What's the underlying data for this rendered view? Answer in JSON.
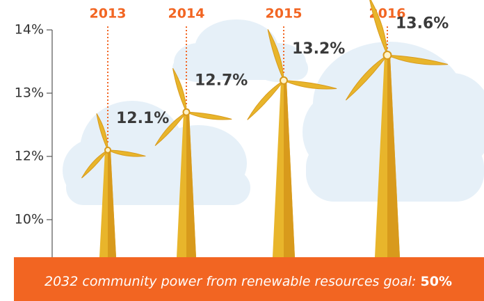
{
  "chart_data": {
    "type": "turbine",
    "categories": [
      "2013",
      "2014",
      "2015",
      "2016"
    ],
    "values": [
      12.1,
      12.7,
      13.2,
      13.6
    ],
    "value_labels": [
      "12.1%",
      "12.7%",
      "13.2%",
      "13.6%"
    ],
    "ylim": [
      10,
      14
    ],
    "yticks": [
      {
        "value": 10,
        "label": "10%"
      },
      {
        "value": 12,
        "label": "12%"
      },
      {
        "value": 13,
        "label": "13%"
      },
      {
        "value": 14,
        "label": "14%"
      }
    ],
    "color": "#e8b52b",
    "category_color": "#f26522"
  },
  "footer": {
    "text": "2032 community power from renewable resources goal:",
    "highlight": "50%"
  }
}
